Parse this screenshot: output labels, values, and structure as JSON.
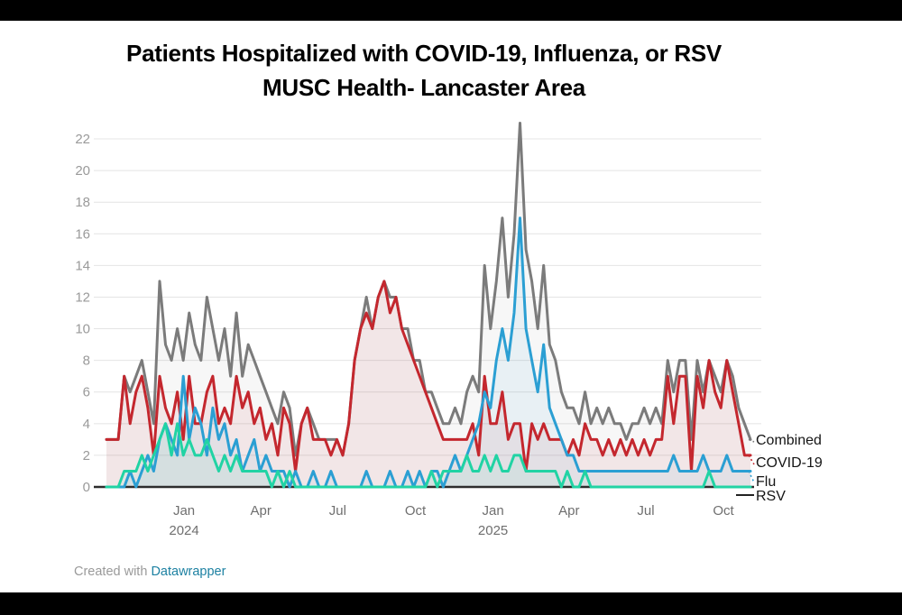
{
  "page": {
    "title_line1": "Patients Hospitalized with COVID-19, Influenza, or RSV",
    "title_line2": "MUSC Health- Lancaster Area"
  },
  "footer": {
    "prefix": "Created with ",
    "link_label": "Datawrapper"
  },
  "colors": {
    "background": "#ffffff",
    "letterbox": "#000000",
    "grid": "#e4e4e4",
    "axis": "#2d2d2d",
    "y_tick_label": "#9a9a9a",
    "x_tick_label": "#6f6f6f",
    "title": "#000000",
    "legend_label": "#151515",
    "link": "#1d81a2"
  },
  "chart_data": {
    "type": "line",
    "title": "Patients Hospitalized with COVID-19, Influenza, or RSV",
    "subtitle": "MUSC Health- Lancaster Area",
    "grid": true,
    "legend_position": "right-of-line-ends",
    "x_unit": "week",
    "x_range_note": "weekly values, Oct 2023 through early Nov 2025",
    "y_axis": {
      "min": 0,
      "max": 23.5,
      "ticks": [
        0,
        2,
        4,
        6,
        8,
        10,
        12,
        14,
        16,
        18,
        20,
        22
      ]
    },
    "x_axis": {
      "ticks": [
        {
          "label": "Jan",
          "year": "2024",
          "week": 13.14
        },
        {
          "label": "Apr",
          "year": "",
          "week": 26.14
        },
        {
          "label": "Jul",
          "year": "",
          "week": 39.14
        },
        {
          "label": "Oct",
          "year": "",
          "week": 52.29
        },
        {
          "label": "Jan",
          "year": "2025",
          "week": 65.43
        },
        {
          "label": "Apr",
          "year": "",
          "week": 78.29
        },
        {
          "label": "Jul",
          "year": "",
          "week": 91.29
        },
        {
          "label": "Oct",
          "year": "",
          "week": 104.43
        }
      ]
    },
    "series": [
      {
        "name": "Combined",
        "color": "#7b7b7b",
        "fill_opacity": 0.06,
        "values": [
          3,
          3,
          3,
          7,
          6,
          7,
          8,
          6,
          4,
          13,
          9,
          8,
          10,
          8,
          11,
          9,
          8,
          12,
          10,
          8,
          10,
          7,
          11,
          7,
          9,
          8,
          7,
          6,
          5,
          4,
          6,
          5,
          2,
          4,
          5,
          4,
          3,
          3,
          3,
          3,
          2,
          4,
          8,
          10,
          12,
          10,
          12,
          13,
          12,
          12,
          10,
          10,
          8,
          8,
          6,
          6,
          5,
          4,
          4,
          5,
          4,
          6,
          7,
          6,
          14,
          10,
          13,
          17,
          12,
          16,
          23,
          15,
          13,
          10,
          14,
          9,
          8,
          6,
          5,
          5,
          4,
          6,
          4,
          5,
          4,
          5,
          4,
          4,
          3,
          4,
          4,
          5,
          4,
          5,
          4,
          8,
          6,
          8,
          8,
          3,
          8,
          6,
          8,
          7,
          6,
          8,
          7,
          5,
          4,
          3
        ]
      },
      {
        "name": "COVID-19",
        "color": "#c4272e",
        "fill_opacity": 0.08,
        "values": [
          3,
          3,
          3,
          7,
          4,
          6,
          7,
          5,
          2,
          7,
          5,
          4,
          6,
          3,
          7,
          4,
          4,
          6,
          7,
          4,
          5,
          4,
          7,
          5,
          6,
          4,
          5,
          3,
          4,
          2,
          5,
          4,
          1,
          4,
          5,
          3,
          3,
          3,
          2,
          3,
          2,
          4,
          8,
          10,
          11,
          10,
          12,
          13,
          11,
          12,
          10,
          9,
          8,
          7,
          6,
          5,
          4,
          3,
          3,
          3,
          3,
          3,
          4,
          2,
          7,
          4,
          4,
          6,
          3,
          4,
          4,
          1,
          4,
          3,
          4,
          3,
          3,
          3,
          2,
          3,
          2,
          4,
          3,
          3,
          2,
          3,
          2,
          3,
          2,
          3,
          2,
          3,
          2,
          3,
          3,
          7,
          4,
          7,
          7,
          1,
          7,
          5,
          8,
          6,
          5,
          8,
          6,
          4,
          2,
          2
        ]
      },
      {
        "name": "Flu",
        "color": "#2b9fd3",
        "fill_opacity": 0.07,
        "values": [
          0,
          0,
          0,
          0,
          1,
          0,
          1,
          2,
          1,
          3,
          4,
          3,
          2,
          7,
          3,
          5,
          4,
          2,
          5,
          3,
          4,
          2,
          3,
          1,
          2,
          3,
          1,
          2,
          1,
          1,
          1,
          0,
          1,
          0,
          0,
          1,
          0,
          0,
          1,
          0,
          0,
          0,
          0,
          0,
          1,
          0,
          0,
          0,
          1,
          0,
          0,
          1,
          0,
          1,
          0,
          1,
          1,
          0,
          1,
          2,
          1,
          2,
          3,
          4,
          6,
          5,
          8,
          10,
          8,
          11,
          17,
          10,
          8,
          6,
          9,
          5,
          4,
          3,
          2,
          2,
          1,
          1,
          1,
          1,
          1,
          1,
          1,
          1,
          1,
          1,
          1,
          1,
          1,
          1,
          1,
          1,
          2,
          1,
          1,
          1,
          1,
          2,
          1,
          1,
          1,
          2,
          1,
          1,
          1,
          1
        ]
      },
      {
        "name": "RSV",
        "color": "#21d3a4",
        "fill_opacity": 0.07,
        "values": [
          0,
          0,
          0,
          1,
          1,
          1,
          2,
          1,
          2,
          3,
          4,
          2,
          4,
          2,
          3,
          2,
          2,
          3,
          2,
          1,
          2,
          1,
          2,
          1,
          1,
          1,
          1,
          1,
          0,
          1,
          0,
          1,
          0,
          0,
          0,
          0,
          0,
          0,
          0,
          0,
          0,
          0,
          0,
          0,
          0,
          0,
          0,
          0,
          0,
          0,
          0,
          0,
          0,
          0,
          0,
          1,
          0,
          1,
          1,
          1,
          1,
          2,
          1,
          1,
          2,
          1,
          2,
          1,
          1,
          2,
          2,
          1,
          1,
          1,
          1,
          1,
          1,
          0,
          1,
          0,
          0,
          1,
          0,
          0,
          0,
          0,
          0,
          0,
          0,
          0,
          0,
          0,
          0,
          0,
          0,
          0,
          0,
          0,
          0,
          0,
          0,
          0,
          1,
          0,
          0,
          0,
          0,
          0,
          0,
          0
        ]
      }
    ]
  }
}
